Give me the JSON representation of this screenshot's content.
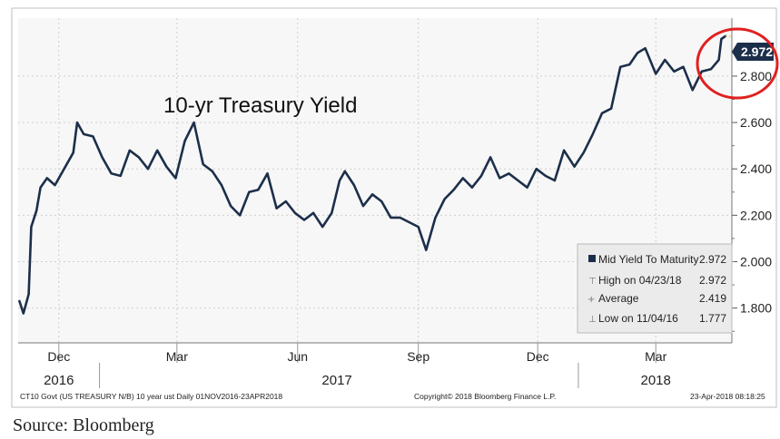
{
  "source_text": "Source: Bloomberg",
  "footer": {
    "left": "CT10 Govt (US TREASURY N/B) 10 year ust  Daily 01NOV2016-23APR2018",
    "mid": "Copyright© 2018 Bloomberg Finance L.P.",
    "right": "23-Apr-2018 08:18:25"
  },
  "legend": {
    "rows": [
      {
        "label": "Mid Yield To Maturity",
        "value": "2.972"
      },
      {
        "label": "High on 04/23/18",
        "value": "2.972"
      },
      {
        "label": "Average",
        "value": "2.419"
      },
      {
        "label": "Low on 11/04/16",
        "value": "1.777"
      }
    ]
  },
  "colors": {
    "line": "#1c2f4a",
    "highlight_circle": "#e02020",
    "last_value_box": "#1c2f4a"
  },
  "chart_data": {
    "type": "line",
    "title": "10-yr Treasury Yield",
    "ylim": [
      1.65,
      3.05
    ],
    "yticks": [
      "1.800",
      "2.000",
      "2.200",
      "2.400",
      "2.600",
      "2.800"
    ],
    "last_value_label": "2.972",
    "month_ticks": [
      {
        "label": "Dec",
        "date": "2016-12-01"
      },
      {
        "label": "Mar",
        "date": "2017-03-01"
      },
      {
        "label": "Jun",
        "date": "2017-06-01"
      },
      {
        "label": "Sep",
        "date": "2017-09-01"
      },
      {
        "label": "Dec",
        "date": "2017-12-01"
      },
      {
        "label": "Mar",
        "date": "2018-03-01"
      }
    ],
    "year_labels": [
      {
        "label": "2016",
        "date": "2016-12-01"
      },
      {
        "label": "2017",
        "date": "2017-07-01"
      },
      {
        "label": "2018",
        "date": "2018-03-01"
      }
    ],
    "annotation": "highlight circle around latest value 2.972",
    "series": [
      {
        "x": [
          "2016-11-01",
          "2016-11-04",
          "2016-11-08",
          "2016-11-10",
          "2016-11-14",
          "2016-11-17",
          "2016-11-22",
          "2016-11-28",
          "2016-12-05",
          "2016-12-12",
          "2016-12-15",
          "2016-12-20",
          "2016-12-27",
          "2017-01-03",
          "2017-01-10",
          "2017-01-17",
          "2017-01-24",
          "2017-01-31",
          "2017-02-07",
          "2017-02-14",
          "2017-02-21",
          "2017-02-28",
          "2017-03-07",
          "2017-03-14",
          "2017-03-21",
          "2017-03-28",
          "2017-04-04",
          "2017-04-11",
          "2017-04-18",
          "2017-04-25",
          "2017-05-02",
          "2017-05-09",
          "2017-05-16",
          "2017-05-23",
          "2017-05-30",
          "2017-06-06",
          "2017-06-13",
          "2017-06-20",
          "2017-06-27",
          "2017-07-03",
          "2017-07-07",
          "2017-07-14",
          "2017-07-21",
          "2017-07-28",
          "2017-08-04",
          "2017-08-11",
          "2017-08-18",
          "2017-08-25",
          "2017-09-01",
          "2017-09-07",
          "2017-09-14",
          "2017-09-21",
          "2017-09-28",
          "2017-10-05",
          "2017-10-12",
          "2017-10-19",
          "2017-10-26",
          "2017-11-02",
          "2017-11-09",
          "2017-11-16",
          "2017-11-23",
          "2017-11-30",
          "2017-12-07",
          "2017-12-14",
          "2017-12-21",
          "2017-12-29",
          "2018-01-05",
          "2018-01-12",
          "2018-01-19",
          "2018-01-26",
          "2018-02-02",
          "2018-02-09",
          "2018-02-15",
          "2018-02-21",
          "2018-03-01",
          "2018-03-08",
          "2018-03-15",
          "2018-03-22",
          "2018-03-29",
          "2018-04-05",
          "2018-04-12",
          "2018-04-18",
          "2018-04-20",
          "2018-04-23"
        ],
        "y": [
          1.83,
          1.777,
          1.86,
          2.15,
          2.22,
          2.32,
          2.36,
          2.33,
          2.4,
          2.47,
          2.6,
          2.55,
          2.54,
          2.45,
          2.38,
          2.37,
          2.48,
          2.45,
          2.4,
          2.48,
          2.41,
          2.36,
          2.52,
          2.6,
          2.42,
          2.39,
          2.33,
          2.24,
          2.2,
          2.3,
          2.31,
          2.38,
          2.23,
          2.26,
          2.21,
          2.18,
          2.21,
          2.15,
          2.21,
          2.35,
          2.39,
          2.33,
          2.24,
          2.29,
          2.26,
          2.19,
          2.19,
          2.17,
          2.15,
          2.05,
          2.19,
          2.27,
          2.31,
          2.36,
          2.32,
          2.37,
          2.45,
          2.36,
          2.38,
          2.35,
          2.32,
          2.4,
          2.37,
          2.35,
          2.48,
          2.41,
          2.47,
          2.55,
          2.64,
          2.66,
          2.84,
          2.85,
          2.9,
          2.92,
          2.81,
          2.87,
          2.82,
          2.84,
          2.74,
          2.82,
          2.83,
          2.87,
          2.96,
          2.972
        ]
      }
    ]
  }
}
